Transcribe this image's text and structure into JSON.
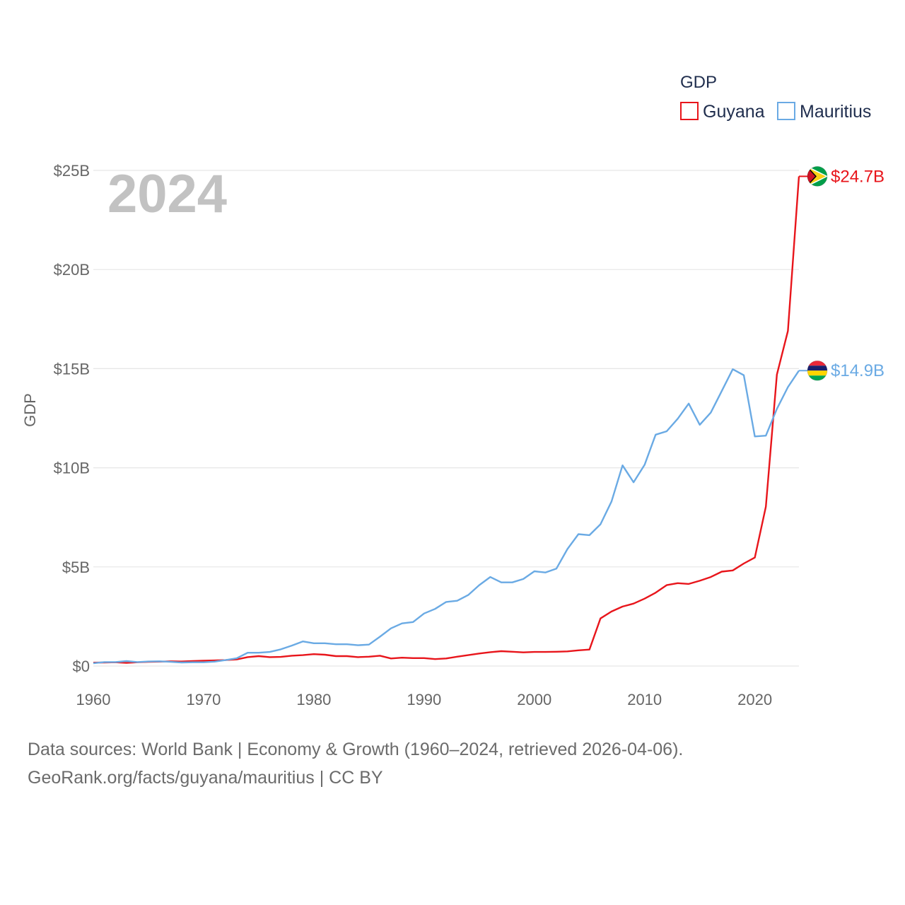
{
  "legend": {
    "title": "GDP",
    "items": [
      "Guyana",
      "Mauritius"
    ]
  },
  "watermark_year": "2024",
  "footer": {
    "line1": "Data sources: World Bank | Economy & Growth (1960–2024, retrieved 2026-04-06).",
    "line2": "GeoRank.org/facts/guyana/mauritius | CC BY"
  },
  "colors": {
    "Guyana": "#e8151b",
    "Mauritius": "#6aaae4",
    "grid": "#e6e6e6"
  },
  "chart_data": {
    "type": "line",
    "title": "",
    "xlabel": "",
    "ylabel": "GDP",
    "xlim": [
      1960,
      2024
    ],
    "ylim": [
      0,
      25
    ],
    "x_ticks": [
      1960,
      1970,
      1980,
      1990,
      2000,
      2010,
      2020
    ],
    "y_ticks": [
      0,
      5,
      10,
      15,
      20,
      25
    ],
    "y_tick_labels": [
      "$0",
      "$5B",
      "$10B",
      "$15B",
      "$20B",
      "$25B"
    ],
    "x": [
      1960,
      1961,
      1962,
      1963,
      1964,
      1965,
      1966,
      1967,
      1968,
      1969,
      1970,
      1971,
      1972,
      1973,
      1974,
      1975,
      1976,
      1977,
      1978,
      1979,
      1980,
      1981,
      1982,
      1983,
      1984,
      1985,
      1986,
      1987,
      1988,
      1989,
      1990,
      1991,
      1992,
      1993,
      1994,
      1995,
      1996,
      1997,
      1998,
      1999,
      2000,
      2001,
      2002,
      2003,
      2004,
      2005,
      2006,
      2007,
      2008,
      2009,
      2010,
      2011,
      2012,
      2013,
      2014,
      2015,
      2016,
      2017,
      2018,
      2019,
      2020,
      2021,
      2022,
      2023,
      2024
    ],
    "series": [
      {
        "name": "Guyana",
        "end_label": "$24.7B",
        "values": [
          0.17,
          0.18,
          0.19,
          0.16,
          0.19,
          0.21,
          0.22,
          0.24,
          0.23,
          0.25,
          0.27,
          0.28,
          0.3,
          0.33,
          0.45,
          0.5,
          0.45,
          0.46,
          0.52,
          0.55,
          0.6,
          0.57,
          0.5,
          0.5,
          0.45,
          0.47,
          0.52,
          0.38,
          0.42,
          0.4,
          0.4,
          0.35,
          0.38,
          0.47,
          0.55,
          0.63,
          0.7,
          0.75,
          0.72,
          0.69,
          0.71,
          0.71,
          0.72,
          0.74,
          0.79,
          0.83,
          2.4,
          2.75,
          3.0,
          3.15,
          3.4,
          3.7,
          4.08,
          4.18,
          4.14,
          4.3,
          4.49,
          4.76,
          4.82,
          5.17,
          5.47,
          8.04,
          14.7,
          16.9,
          24.7
        ]
      },
      {
        "name": "Mauritius",
        "end_label": "$14.9B",
        "values": [
          0.14,
          0.2,
          0.2,
          0.25,
          0.2,
          0.23,
          0.24,
          0.21,
          0.18,
          0.19,
          0.19,
          0.22,
          0.3,
          0.39,
          0.67,
          0.67,
          0.71,
          0.84,
          1.03,
          1.24,
          1.15,
          1.15,
          1.1,
          1.1,
          1.05,
          1.08,
          1.48,
          1.9,
          2.15,
          2.22,
          2.65,
          2.88,
          3.23,
          3.29,
          3.58,
          4.08,
          4.49,
          4.22,
          4.22,
          4.39,
          4.78,
          4.72,
          4.91,
          5.9,
          6.65,
          6.6,
          7.15,
          8.3,
          10.12,
          9.27,
          10.15,
          11.67,
          11.84,
          12.47,
          13.24,
          12.17,
          12.78,
          13.87,
          14.97,
          14.67,
          11.58,
          11.62,
          12.97,
          14.07,
          14.9
        ]
      }
    ]
  }
}
